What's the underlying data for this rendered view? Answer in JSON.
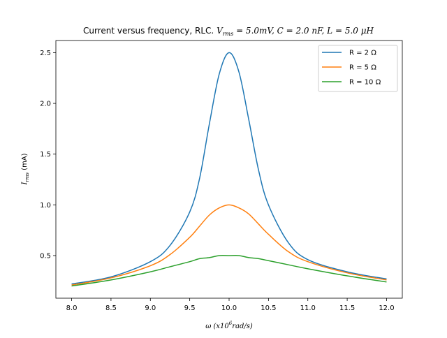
{
  "chart_data": {
    "type": "line",
    "title": {
      "plain": "Current versus frequency, RLC. ",
      "math": "V",
      "math_sub": "rms",
      "math_rest": " = 5.0mV, C = 2.0 nF, L = 5.0 μH"
    },
    "xlabel": {
      "prefix": "ω (x10",
      "sup": "6",
      "suffix": "rad/s)"
    },
    "ylabel": {
      "main": "I",
      "sub": "rms",
      "rest": " (mA)"
    },
    "xlim": [
      7.8,
      12.2
    ],
    "ylim": [
      0.08,
      2.62
    ],
    "xticks": [
      "8.0",
      "8.5",
      "9.0",
      "9.5",
      "10.0",
      "10.5",
      "11.0",
      "11.5",
      "12.0"
    ],
    "yticks": [
      "0.5",
      "1.0",
      "1.5",
      "2.0",
      "2.5"
    ],
    "grid": false,
    "legend_position": "top-right",
    "x": [
      8.0,
      8.5,
      9.0,
      9.25,
      9.5,
      9.625,
      9.75,
      9.875,
      10.0,
      10.125,
      10.25,
      10.375,
      10.5,
      10.75,
      11.0,
      11.5,
      12.0
    ],
    "series": [
      {
        "name": "R = 2 Ω",
        "color": "#1f77b4",
        "values": [
          0.22,
          0.29,
          0.44,
          0.6,
          0.93,
          1.26,
          1.8,
          2.29,
          2.5,
          2.31,
          1.84,
          1.34,
          1.0,
          0.63,
          0.46,
          0.34,
          0.27
        ]
      },
      {
        "name": "R = 5 Ω",
        "color": "#ff7f0e",
        "values": [
          0.21,
          0.28,
          0.4,
          0.51,
          0.68,
          0.79,
          0.9,
          0.97,
          1.0,
          0.97,
          0.91,
          0.81,
          0.71,
          0.54,
          0.44,
          0.33,
          0.26
        ]
      },
      {
        "name": "R = 10 Ω",
        "color": "#2ca02c",
        "values": [
          0.2,
          0.26,
          0.34,
          0.39,
          0.44,
          0.47,
          0.48,
          0.5,
          0.5,
          0.5,
          0.48,
          0.47,
          0.45,
          0.41,
          0.37,
          0.3,
          0.24
        ]
      }
    ]
  }
}
